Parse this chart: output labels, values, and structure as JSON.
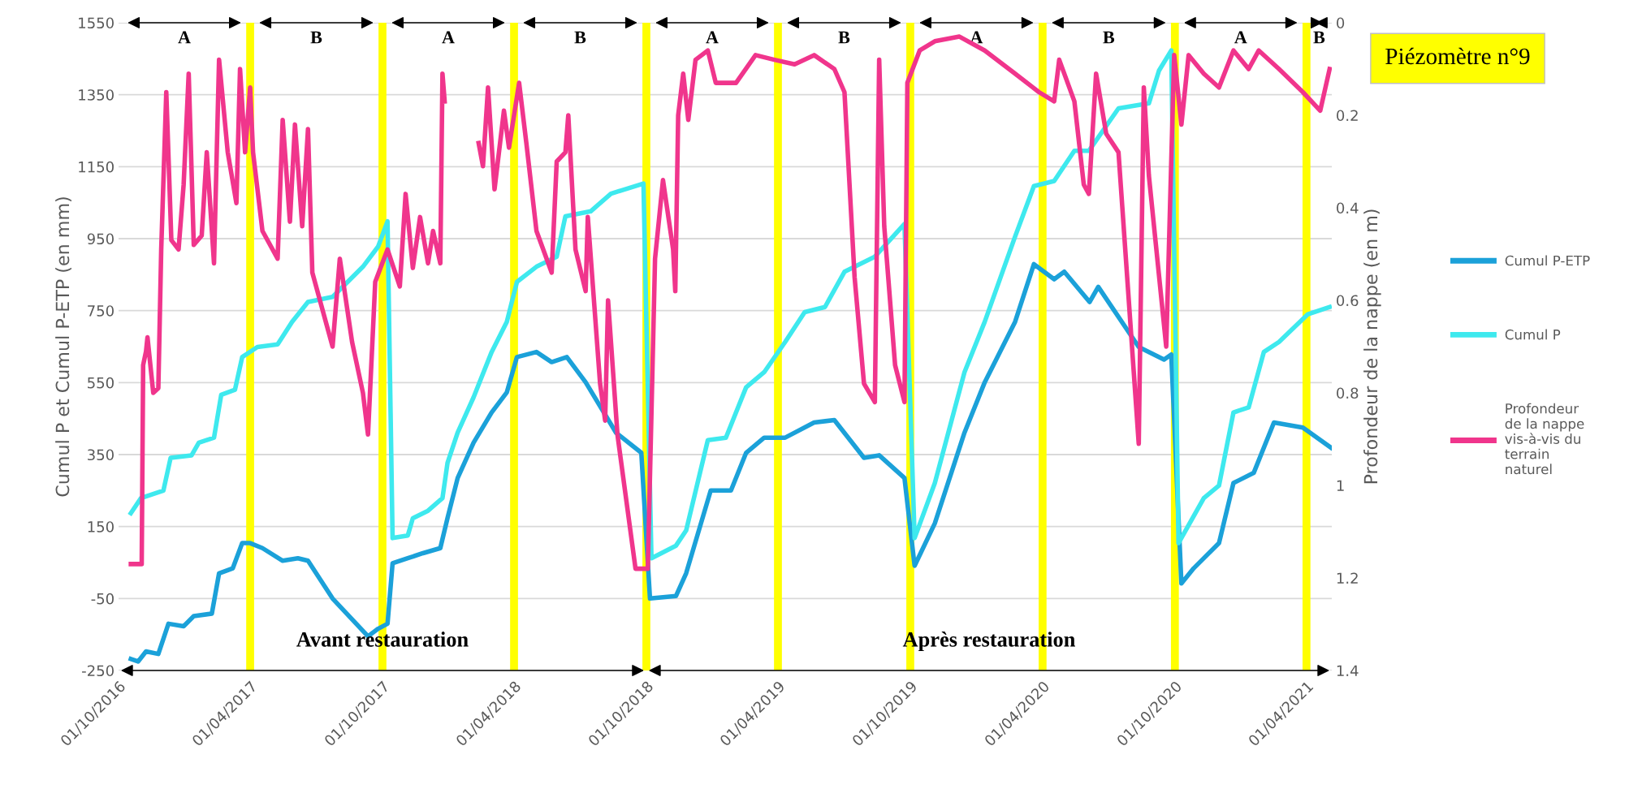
{
  "chart_data": {
    "type": "line",
    "title": "Piézomètre n°9",
    "ylabel": "Cumul P et Cumul P-ETP (en mm)",
    "y2label": "Profondeur de la nappe (en m)",
    "xlim": [
      "2016-10-01",
      "2021-05-06"
    ],
    "xticks": [
      {
        "value": "2016-10-01",
        "label": "01/10/2016"
      },
      {
        "value": "2017-04-01",
        "label": "01/04/2017"
      },
      {
        "value": "2017-10-01",
        "label": "01/10/2017"
      },
      {
        "value": "2018-04-01",
        "label": "01/04/2018"
      },
      {
        "value": "2018-10-01",
        "label": "01/10/2018"
      },
      {
        "value": "2019-04-01",
        "label": "01/04/2019"
      },
      {
        "value": "2019-10-01",
        "label": "01/10/2019"
      },
      {
        "value": "2020-04-01",
        "label": "01/04/2020"
      },
      {
        "value": "2020-10-01",
        "label": "01/10/2020"
      },
      {
        "value": "2021-04-01",
        "label": "01/04/2021"
      }
    ],
    "ylim": [
      -250,
      1550
    ],
    "yticks": [
      -250,
      -50,
      150,
      350,
      550,
      750,
      950,
      1150,
      1350,
      1550
    ],
    "y2lim": [
      1.4,
      0
    ],
    "y2ticks": [
      0,
      0.2,
      0.4,
      0.6,
      0.8,
      1,
      1.2,
      1.4
    ],
    "grid": "y",
    "legend": "right",
    "line_style": "solid",
    "marker": "none",
    "series": [
      {
        "name": "Cumul P-ETP",
        "color": "#1ba1d9",
        "x": [
          "2016-10-18",
          "2016-10-28",
          "2016-11-08",
          "2016-11-25",
          "2016-12-09",
          "2016-12-30",
          "2017-01-13",
          "2017-02-07",
          "2017-02-17",
          "2017-03-08",
          "2017-03-21",
          "2017-04-01",
          "2017-04-18",
          "2017-05-16",
          "2017-06-06",
          "2017-06-20",
          "2017-07-24",
          "2017-09-11",
          "2017-09-25",
          "2017-10-08",
          "2017-10-15",
          "2017-11-05",
          "2017-11-26",
          "2017-12-20",
          "2017-12-30",
          "2018-01-13",
          "2018-02-04",
          "2018-03-01",
          "2018-03-22",
          "2018-04-05",
          "2018-05-02",
          "2018-05-23",
          "2018-06-13",
          "2018-07-09",
          "2018-08-20",
          "2018-09-24",
          "2018-10-06",
          "2018-11-11",
          "2018-11-25",
          "2018-12-29",
          "2019-01-26",
          "2019-02-16",
          "2019-03-13",
          "2019-04-11",
          "2019-05-21",
          "2019-06-18",
          "2019-07-29",
          "2019-08-19",
          "2019-09-23",
          "2019-10-07",
          "2019-11-04",
          "2019-12-15",
          "2020-01-12",
          "2020-02-23",
          "2020-03-20",
          "2020-04-17",
          "2020-05-01",
          "2020-06-05",
          "2020-06-17",
          "2020-08-12",
          "2020-09-16",
          "2020-09-26",
          "2020-10-10",
          "2020-10-27",
          "2020-12-01",
          "2020-12-21",
          "2021-01-18",
          "2021-02-15",
          "2021-03-27",
          "2021-05-05"
        ],
        "values": [
          -218,
          -225,
          -197,
          -204,
          -120,
          -127,
          -99,
          -92,
          20,
          34,
          104,
          104,
          90,
          55,
          62,
          55,
          -50,
          -155,
          -134,
          -120,
          48,
          62,
          76,
          90,
          174,
          285,
          383,
          467,
          523,
          621,
          635,
          607,
          621,
          551,
          411,
          355,
          -50,
          -43,
          20,
          250,
          250,
          355,
          397,
          397,
          439,
          446,
          341,
          348,
          285,
          41,
          159,
          411,
          551,
          719,
          879,
          837,
          858,
          774,
          816,
          649,
          614,
          628,
          -8,
          34,
          104,
          271,
          299,
          439,
          425,
          369
        ]
      },
      {
        "name": "Cumul P",
        "color": "#3ee9ee",
        "x": [
          "2016-10-18",
          "2016-11-01",
          "2016-12-02",
          "2016-12-12",
          "2017-01-10",
          "2017-01-20",
          "2017-02-10",
          "2017-02-20",
          "2017-03-11",
          "2017-03-21",
          "2017-04-11",
          "2017-05-09",
          "2017-05-29",
          "2017-06-20",
          "2017-07-24",
          "2017-09-04",
          "2017-09-25",
          "2017-10-08",
          "2017-10-15",
          "2017-11-05",
          "2017-11-12",
          "2017-12-03",
          "2017-12-23",
          "2017-12-30",
          "2018-01-13",
          "2018-02-04",
          "2018-03-01",
          "2018-03-22",
          "2018-04-05",
          "2018-05-02",
          "2018-05-30",
          "2018-06-11",
          "2018-07-16",
          "2018-08-13",
          "2018-09-27",
          "2018-10-08",
          "2018-11-11",
          "2018-11-25",
          "2018-12-25",
          "2019-01-19",
          "2019-02-16",
          "2019-03-13",
          "2019-04-11",
          "2019-05-08",
          "2019-06-05",
          "2019-07-02",
          "2019-08-13",
          "2019-09-23",
          "2019-10-07",
          "2019-11-04",
          "2019-12-15",
          "2020-01-12",
          "2020-02-23",
          "2020-03-20",
          "2020-04-17",
          "2020-05-15",
          "2020-06-04",
          "2020-07-15",
          "2020-08-26",
          "2020-09-09",
          "2020-09-26",
          "2020-10-06",
          "2020-11-10",
          "2020-12-01",
          "2020-12-21",
          "2021-01-11",
          "2021-02-01",
          "2021-02-22",
          "2021-04-03",
          "2021-05-03"
        ],
        "values": [
          187,
          229,
          250,
          341,
          348,
          383,
          397,
          516,
          530,
          621,
          649,
          656,
          719,
          774,
          788,
          872,
          928,
          998,
          118,
          125,
          173,
          194,
          229,
          327,
          411,
          509,
          635,
          719,
          830,
          872,
          900,
          1012,
          1026,
          1075,
          1103,
          62,
          97,
          139,
          390,
          397,
          537,
          579,
          663,
          746,
          760,
          858,
          900,
          991,
          118,
          271,
          579,
          719,
          956,
          1096,
          1110,
          1194,
          1194,
          1312,
          1326,
          1417,
          1473,
          104,
          229,
          264,
          467,
          481,
          635,
          663,
          740,
          760
        ]
      },
      {
        "name": "Profondeur de la nappe vis-à-vis du terrain naturel",
        "color": "#f0358c",
        "axis": "y2",
        "x": [
          "2016-10-18",
          "2016-11-02",
          "2016-11-04",
          "2016-11-08",
          "2016-11-10",
          "2016-11-18",
          "2016-11-25",
          "2016-11-29",
          "2016-12-06",
          "2016-12-13",
          "2016-12-23",
          "2016-12-30",
          "2017-01-06",
          "2017-01-13",
          "2017-01-24",
          "2017-01-31",
          "2017-02-10",
          "2017-02-17",
          "2017-03-01",
          "2017-03-13",
          "2017-03-18",
          "2017-03-25",
          "2017-04-01",
          "2017-04-05",
          "2017-04-18",
          "2017-05-09",
          "2017-05-16",
          "2017-05-26",
          "2017-06-02",
          "2017-06-12",
          "2017-06-20",
          "2017-06-26",
          "2017-07-24",
          "2017-08-03",
          "2017-08-20",
          "2017-09-04",
          "2017-09-11",
          "2017-09-18",
          "2017-09-21",
          "2017-10-08",
          "2017-10-25",
          "2017-11-02",
          "2017-11-12",
          "2017-11-22",
          "2017-12-03",
          "2017-12-10",
          "2017-12-20",
          "2017-12-23",
          "2017-12-26",
          "2018-01-15",
          "2018-02-11",
          "2018-02-17",
          "2018-02-24",
          "2018-03-05",
          "2018-03-18",
          "2018-03-25",
          "2018-04-08",
          "2018-04-18",
          "2018-05-02",
          "2018-05-23",
          "2018-05-30",
          "2018-06-11",
          "2018-06-15",
          "2018-06-25",
          "2018-07-09",
          "2018-07-12",
          "2018-07-29",
          "2018-08-05",
          "2018-08-09",
          "2018-08-22",
          "2018-09-16",
          "2018-10-03",
          "2018-10-13",
          "2018-10-24",
          "2018-11-07",
          "2018-11-10",
          "2018-11-14",
          "2018-11-21",
          "2018-11-28",
          "2018-12-08",
          "2018-12-25",
          "2019-01-05",
          "2019-02-02",
          "2019-03-01",
          "2019-03-27",
          "2019-04-24",
          "2019-05-21",
          "2019-06-18",
          "2019-07-02",
          "2019-07-16",
          "2019-07-29",
          "2019-08-13",
          "2019-08-19",
          "2019-08-26",
          "2019-09-10",
          "2019-09-23",
          "2019-09-27",
          "2019-10-14",
          "2019-11-04",
          "2019-12-08",
          "2020-01-12",
          "2020-02-23",
          "2020-03-27",
          "2020-04-17",
          "2020-04-24",
          "2020-05-15",
          "2020-05-28",
          "2020-06-04",
          "2020-06-14",
          "2020-06-28",
          "2020-07-15",
          "2020-08-12",
          "2020-08-19",
          "2020-08-26",
          "2020-09-19",
          "2020-09-30",
          "2020-10-10",
          "2020-10-20",
          "2020-11-10",
          "2020-12-01",
          "2020-12-21",
          "2021-01-11",
          "2021-01-25",
          "2021-02-22",
          "2021-03-27",
          "2021-04-20",
          "2021-05-03"
        ],
        "values": [
          1.17,
          1.17,
          0.74,
          0.71,
          0.68,
          0.8,
          0.79,
          0.49,
          0.15,
          0.47,
          0.49,
          0.35,
          0.11,
          0.48,
          0.46,
          0.28,
          0.52,
          0.08,
          0.28,
          0.39,
          0.1,
          0.28,
          0.14,
          0.28,
          0.45,
          0.51,
          0.21,
          0.43,
          0.22,
          0.44,
          0.23,
          0.54,
          0.7,
          0.51,
          0.69,
          0.8,
          0.89,
          0.66,
          0.56,
          0.49,
          0.57,
          0.37,
          0.53,
          0.42,
          0.52,
          0.45,
          0.52,
          0.11,
          0.17,
          null,
          0.26,
          0.31,
          0.14,
          0.36,
          0.19,
          0.27,
          0.13,
          0.26,
          0.45,
          0.54,
          0.3,
          0.28,
          0.2,
          0.49,
          0.58,
          0.42,
          0.78,
          0.86,
          0.6,
          0.89,
          1.18,
          1.18,
          0.51,
          0.34,
          0.49,
          0.58,
          0.2,
          0.11,
          0.21,
          0.08,
          0.06,
          0.13,
          0.13,
          0.07,
          0.08,
          0.09,
          0.07,
          0.1,
          0.15,
          0.55,
          0.78,
          0.82,
          0.08,
          0.44,
          0.74,
          0.82,
          0.13,
          0.06,
          0.04,
          0.03,
          0.06,
          0.11,
          0.15,
          0.17,
          0.08,
          0.17,
          0.35,
          0.37,
          0.11,
          0.24,
          0.28,
          0.91,
          0.14,
          0.33,
          0.7,
          0.07,
          0.22,
          0.07,
          0.11,
          0.14,
          0.06,
          0.1,
          0.06,
          0.1,
          0.15,
          0.19,
          0.1
        ]
      }
    ],
    "ref_lines": [
      {
        "axis": "x",
        "value": "2017-04-01",
        "color": "#ffff00"
      },
      {
        "axis": "x",
        "value": "2017-10-01",
        "color": "#ffff00"
      },
      {
        "axis": "x",
        "value": "2018-04-01",
        "color": "#ffff00"
      },
      {
        "axis": "x",
        "value": "2018-10-01",
        "color": "#ffff00"
      },
      {
        "axis": "x",
        "value": "2019-04-01",
        "color": "#ffff00"
      },
      {
        "axis": "x",
        "value": "2019-10-01",
        "color": "#ffff00"
      },
      {
        "axis": "x",
        "value": "2020-04-01",
        "color": "#ffff00"
      },
      {
        "axis": "x",
        "value": "2020-10-01",
        "color": "#ffff00"
      },
      {
        "axis": "x",
        "value": "2021-04-01",
        "color": "#ffff00"
      }
    ],
    "annotations": [
      "A",
      "B",
      "A",
      "B",
      "A",
      "B",
      "A",
      "B",
      "A",
      "B",
      "Avant restauration",
      "Après restauration"
    ]
  }
}
